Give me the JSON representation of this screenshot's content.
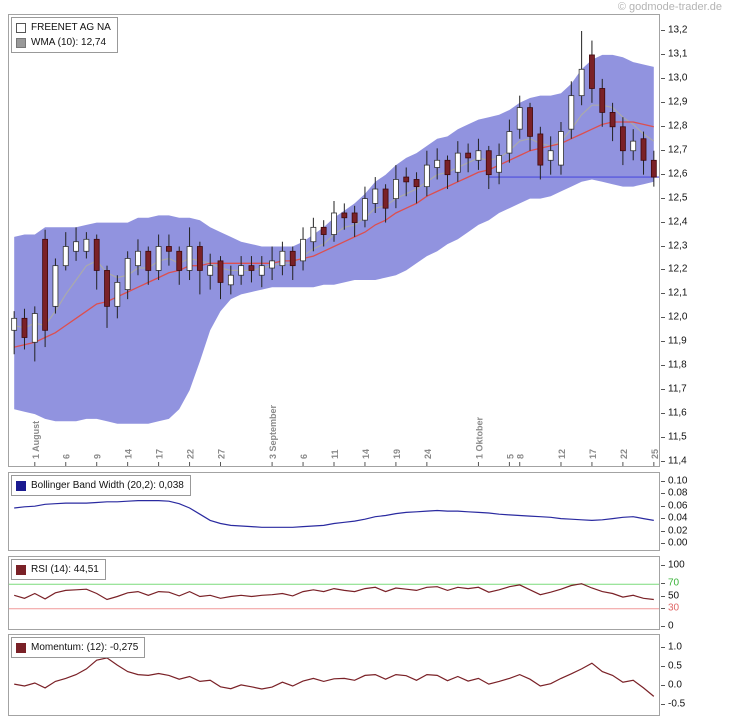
{
  "watermark": "© godmode-trader.de",
  "legend": {
    "instrument": "FREENET AG NA",
    "wma": "WMA (10): 12,74",
    "bbw": "Bollinger Band Width (20,2): 0,038",
    "rsi": "RSI (14): 44,51",
    "momentum": "Momentum: (12): -0,275"
  },
  "colors": {
    "band": "#9193df",
    "up": "#ffffff",
    "down": "#7a2127",
    "downStroke": "#40090c",
    "wick": "#222222",
    "wma": "#aaaaaa",
    "sma": "#dd4f4f",
    "last": "#4d4ddd",
    "axis_text": "#111111",
    "x_label": "#8a8a8a"
  },
  "chart_data": [
    {
      "id": "price",
      "type": "candlestick",
      "title": "FREENET AG NA",
      "overlays": [
        "WMA (10): 12,74",
        "Bollinger Bands (20,2)",
        "moving average (red)"
      ],
      "ylim": [
        11.4,
        13.2
      ],
      "last_price": 12.59,
      "y_ticks": [
        {
          "v": 13.2,
          "label": "13,2"
        },
        {
          "v": 13.1,
          "label": "13,1"
        },
        {
          "v": 13.0,
          "label": "13,0"
        },
        {
          "v": 12.9,
          "label": "12,9"
        },
        {
          "v": 12.8,
          "label": "12,8"
        },
        {
          "v": 12.7,
          "label": "12,7"
        },
        {
          "v": 12.6,
          "label": "12,6"
        },
        {
          "v": 12.5,
          "label": "12,5"
        },
        {
          "v": 12.4,
          "label": "12,4"
        },
        {
          "v": 12.3,
          "label": "12,3"
        },
        {
          "v": 12.2,
          "label": "12,2"
        },
        {
          "v": 12.1,
          "label": "12,1"
        },
        {
          "v": 12.0,
          "label": "12,0"
        },
        {
          "v": 11.9,
          "label": "11,9"
        },
        {
          "v": 11.8,
          "label": "11,8"
        },
        {
          "v": 11.7,
          "label": "11,7"
        },
        {
          "v": 11.6,
          "label": "11,6"
        },
        {
          "v": 11.5,
          "label": "11,5"
        },
        {
          "v": 11.4,
          "label": "11,4"
        }
      ],
      "x_ticks": [
        {
          "i": 2,
          "label": "1 August"
        },
        {
          "i": 5,
          "label": "6"
        },
        {
          "i": 8,
          "label": "9"
        },
        {
          "i": 11,
          "label": "14"
        },
        {
          "i": 14,
          "label": "17"
        },
        {
          "i": 17,
          "label": "22"
        },
        {
          "i": 20,
          "label": "27"
        },
        {
          "i": 25,
          "label": "3 September"
        },
        {
          "i": 28,
          "label": "6"
        },
        {
          "i": 31,
          "label": "11"
        },
        {
          "i": 34,
          "label": "14"
        },
        {
          "i": 37,
          "label": "19"
        },
        {
          "i": 40,
          "label": "24"
        },
        {
          "i": 45,
          "label": "1 Oktober"
        },
        {
          "i": 48,
          "label": "5"
        },
        {
          "i": 49,
          "label": "8"
        },
        {
          "i": 53,
          "label": "12"
        },
        {
          "i": 56,
          "label": "17"
        },
        {
          "i": 59,
          "label": "22"
        },
        {
          "i": 62,
          "label": "25"
        }
      ],
      "open": [
        11.95,
        12.0,
        11.9,
        12.33,
        12.05,
        12.22,
        12.28,
        12.28,
        12.33,
        12.2,
        12.05,
        12.12,
        12.22,
        12.28,
        12.2,
        12.3,
        12.28,
        12.2,
        12.3,
        12.18,
        12.24,
        12.14,
        12.18,
        12.22,
        12.18,
        12.21,
        12.22,
        12.28,
        12.24,
        12.32,
        12.38,
        12.35,
        12.44,
        12.44,
        12.41,
        12.48,
        12.54,
        12.5,
        12.59,
        12.58,
        12.55,
        12.63,
        12.66,
        12.61,
        12.69,
        12.66,
        12.7,
        12.61,
        12.69,
        12.79,
        12.88,
        12.77,
        12.66,
        12.64,
        12.79,
        12.93,
        13.1,
        12.96,
        12.86,
        12.8,
        12.7,
        12.75,
        12.66
      ],
      "high": [
        12.03,
        12.04,
        12.05,
        12.37,
        12.25,
        12.36,
        12.38,
        12.36,
        12.35,
        12.22,
        12.18,
        12.28,
        12.33,
        12.3,
        12.35,
        12.35,
        12.3,
        12.38,
        12.32,
        12.27,
        12.26,
        12.22,
        12.26,
        12.26,
        12.26,
        12.3,
        12.32,
        12.3,
        12.38,
        12.42,
        12.41,
        12.49,
        12.48,
        12.47,
        12.55,
        12.59,
        12.56,
        12.64,
        12.63,
        12.61,
        12.7,
        12.71,
        12.68,
        12.74,
        12.73,
        12.75,
        12.72,
        12.73,
        12.83,
        12.93,
        12.9,
        12.8,
        12.76,
        12.82,
        12.99,
        13.2,
        13.16,
        13.0,
        12.9,
        12.84,
        12.79,
        12.78,
        12.7
      ],
      "low": [
        11.85,
        11.87,
        11.82,
        11.88,
        12.02,
        12.2,
        12.24,
        12.25,
        12.12,
        11.96,
        12.0,
        12.08,
        12.18,
        12.14,
        12.16,
        12.22,
        12.14,
        12.16,
        12.1,
        12.12,
        12.08,
        12.1,
        12.14,
        12.15,
        12.13,
        12.16,
        12.18,
        12.16,
        12.2,
        12.28,
        12.3,
        12.32,
        12.37,
        12.34,
        12.38,
        12.44,
        12.4,
        12.46,
        12.51,
        12.48,
        12.51,
        12.58,
        12.54,
        12.57,
        12.61,
        12.62,
        12.54,
        12.56,
        12.65,
        12.75,
        12.7,
        12.58,
        12.6,
        12.6,
        12.75,
        12.89,
        12.9,
        12.8,
        12.74,
        12.64,
        12.66,
        12.6,
        12.55
      ],
      "close": [
        12.0,
        11.92,
        12.02,
        11.95,
        12.22,
        12.3,
        12.32,
        12.33,
        12.2,
        12.05,
        12.15,
        12.25,
        12.28,
        12.2,
        12.3,
        12.28,
        12.2,
        12.3,
        12.2,
        12.22,
        12.15,
        12.18,
        12.22,
        12.2,
        12.22,
        12.24,
        12.28,
        12.22,
        12.33,
        12.38,
        12.35,
        12.44,
        12.42,
        12.4,
        12.5,
        12.54,
        12.46,
        12.58,
        12.57,
        12.55,
        12.64,
        12.66,
        12.6,
        12.69,
        12.67,
        12.7,
        12.6,
        12.68,
        12.78,
        12.88,
        12.76,
        12.64,
        12.7,
        12.78,
        12.93,
        13.04,
        12.96,
        12.86,
        12.8,
        12.7,
        12.74,
        12.66,
        12.59
      ],
      "wma10": [
        11.97,
        11.96,
        11.98,
        11.97,
        12.03,
        12.1,
        12.16,
        12.22,
        12.24,
        12.19,
        12.17,
        12.18,
        12.21,
        12.21,
        12.24,
        12.25,
        12.23,
        12.25,
        12.24,
        12.23,
        12.21,
        12.2,
        12.2,
        12.2,
        12.21,
        12.22,
        12.23,
        12.23,
        12.26,
        12.29,
        12.31,
        12.35,
        12.38,
        12.39,
        12.42,
        12.46,
        12.47,
        12.5,
        12.52,
        12.54,
        12.57,
        12.6,
        12.61,
        12.63,
        12.65,
        12.67,
        12.66,
        12.67,
        12.7,
        12.74,
        12.75,
        12.73,
        12.72,
        12.74,
        12.79,
        12.85,
        12.89,
        12.89,
        12.88,
        12.84,
        12.81,
        12.77,
        12.74
      ],
      "sma20": [
        11.88,
        11.89,
        11.9,
        11.92,
        11.94,
        11.97,
        12.0,
        12.03,
        12.06,
        12.07,
        12.09,
        12.11,
        12.13,
        12.15,
        12.17,
        12.19,
        12.2,
        12.22,
        12.22,
        12.23,
        12.23,
        12.23,
        12.23,
        12.23,
        12.23,
        12.23,
        12.24,
        12.24,
        12.25,
        12.26,
        12.28,
        12.3,
        12.32,
        12.34,
        12.36,
        12.39,
        12.41,
        12.44,
        12.46,
        12.48,
        12.51,
        12.53,
        12.55,
        12.57,
        12.59,
        12.61,
        12.62,
        12.64,
        12.66,
        12.68,
        12.7,
        12.71,
        12.72,
        12.73,
        12.75,
        12.77,
        12.79,
        12.81,
        12.82,
        12.82,
        12.82,
        12.81,
        12.8
      ],
      "bb_upper": [
        12.34,
        12.35,
        12.35,
        12.38,
        12.38,
        12.38,
        12.38,
        12.39,
        12.4,
        12.4,
        12.4,
        12.4,
        12.42,
        12.42,
        12.43,
        12.43,
        12.42,
        12.42,
        12.41,
        12.38,
        12.36,
        12.34,
        12.32,
        12.31,
        12.3,
        12.3,
        12.3,
        12.3,
        12.32,
        12.35,
        12.38,
        12.42,
        12.45,
        12.48,
        12.52,
        12.57,
        12.6,
        12.64,
        12.67,
        12.69,
        12.72,
        12.75,
        12.76,
        12.79,
        12.81,
        12.83,
        12.84,
        12.85,
        12.87,
        12.9,
        12.92,
        12.93,
        12.93,
        12.94,
        12.98,
        13.04,
        13.08,
        13.1,
        13.1,
        13.09,
        13.07,
        13.06,
        13.05
      ],
      "bb_lower": [
        11.62,
        11.61,
        11.6,
        11.58,
        11.57,
        11.57,
        11.57,
        11.58,
        11.58,
        11.57,
        11.56,
        11.56,
        11.56,
        11.56,
        11.57,
        11.58,
        11.62,
        11.7,
        11.82,
        11.95,
        12.03,
        12.08,
        12.1,
        12.11,
        12.12,
        12.13,
        12.13,
        12.13,
        12.13,
        12.13,
        12.14,
        12.14,
        12.15,
        12.16,
        12.16,
        12.16,
        12.17,
        12.18,
        12.2,
        12.23,
        12.26,
        12.28,
        12.31,
        12.33,
        12.36,
        12.39,
        12.41,
        12.44,
        12.46,
        12.48,
        12.5,
        12.5,
        12.51,
        12.53,
        12.55,
        12.57,
        12.58,
        12.57,
        12.56,
        12.55,
        12.55,
        12.56,
        12.57
      ]
    },
    {
      "id": "bbw",
      "type": "line",
      "title": "Bollinger Band Width (20,2)",
      "current_value": "0,038",
      "color": "#2a2aa0",
      "ylim": [
        0.0,
        0.1
      ],
      "y_ticks": [
        {
          "v": 0.1,
          "label": "0.10"
        },
        {
          "v": 0.08,
          "label": "0.08"
        },
        {
          "v": 0.06,
          "label": "0.06"
        },
        {
          "v": 0.04,
          "label": "0.04"
        },
        {
          "v": 0.02,
          "label": "0.02"
        },
        {
          "v": 0.0,
          "label": "0.00"
        }
      ],
      "values": [
        0.058,
        0.06,
        0.061,
        0.064,
        0.065,
        0.066,
        0.066,
        0.066,
        0.067,
        0.068,
        0.068,
        0.069,
        0.07,
        0.07,
        0.07,
        0.069,
        0.065,
        0.058,
        0.048,
        0.038,
        0.033,
        0.03,
        0.029,
        0.028,
        0.027,
        0.027,
        0.027,
        0.027,
        0.028,
        0.029,
        0.03,
        0.033,
        0.035,
        0.037,
        0.04,
        0.044,
        0.046,
        0.049,
        0.051,
        0.052,
        0.053,
        0.054,
        0.053,
        0.053,
        0.052,
        0.051,
        0.05,
        0.048,
        0.047,
        0.046,
        0.045,
        0.044,
        0.043,
        0.041,
        0.04,
        0.039,
        0.038,
        0.039,
        0.041,
        0.043,
        0.044,
        0.041,
        0.038
      ]
    },
    {
      "id": "rsi",
      "type": "line",
      "title": "RSI (14)",
      "current_value": "44,51",
      "color": "#7a2127",
      "ylim": [
        0,
        100
      ],
      "hlines": [
        {
          "v": 70,
          "color": "#7bdb7b"
        },
        {
          "v": 30,
          "color": "#f19999"
        }
      ],
      "y_ticks": [
        {
          "v": 100,
          "label": "100"
        },
        {
          "v": 70,
          "label": "70",
          "color": "#3cb43c"
        },
        {
          "v": 50,
          "label": "50"
        },
        {
          "v": 30,
          "label": "30",
          "color": "#e06666"
        },
        {
          "v": 0,
          "label": "0"
        }
      ],
      "values": [
        52,
        47,
        55,
        46,
        56,
        60,
        61,
        62,
        55,
        45,
        50,
        56,
        58,
        52,
        58,
        57,
        51,
        58,
        50,
        52,
        47,
        50,
        52,
        50,
        52,
        53,
        55,
        51,
        58,
        61,
        58,
        63,
        60,
        58,
        63,
        65,
        58,
        64,
        62,
        60,
        65,
        66,
        60,
        65,
        63,
        65,
        57,
        61,
        66,
        69,
        61,
        53,
        57,
        62,
        68,
        71,
        64,
        58,
        55,
        49,
        52,
        47,
        45
      ]
    },
    {
      "id": "momentum",
      "type": "line",
      "title": "Momentum: (12)",
      "current_value": "-0,275",
      "color": "#7a2127",
      "ylim": [
        -0.5,
        1.0
      ],
      "y_ticks": [
        {
          "v": 1.0,
          "label": "1.0"
        },
        {
          "v": 0.5,
          "label": "0.5"
        },
        {
          "v": 0.0,
          "label": "0.0"
        },
        {
          "v": -0.5,
          "label": "-0.5"
        }
      ],
      "values": [
        0.05,
        0.0,
        0.08,
        -0.05,
        0.12,
        0.2,
        0.3,
        0.45,
        0.68,
        0.74,
        0.55,
        0.38,
        0.3,
        0.28,
        0.33,
        0.28,
        0.18,
        0.25,
        0.12,
        0.15,
        -0.02,
        -0.07,
        0.03,
        -0.02,
        -0.08,
        -0.03,
        0.1,
        0.0,
        0.13,
        0.2,
        0.12,
        0.19,
        0.2,
        0.15,
        0.28,
        0.3,
        0.18,
        0.3,
        0.27,
        0.15,
        0.3,
        0.28,
        0.14,
        0.25,
        0.13,
        0.2,
        0.05,
        0.12,
        0.2,
        0.3,
        0.18,
        0.0,
        0.06,
        0.2,
        0.32,
        0.45,
        0.6,
        0.38,
        0.28,
        0.1,
        0.15,
        -0.05,
        -0.275
      ]
    }
  ]
}
